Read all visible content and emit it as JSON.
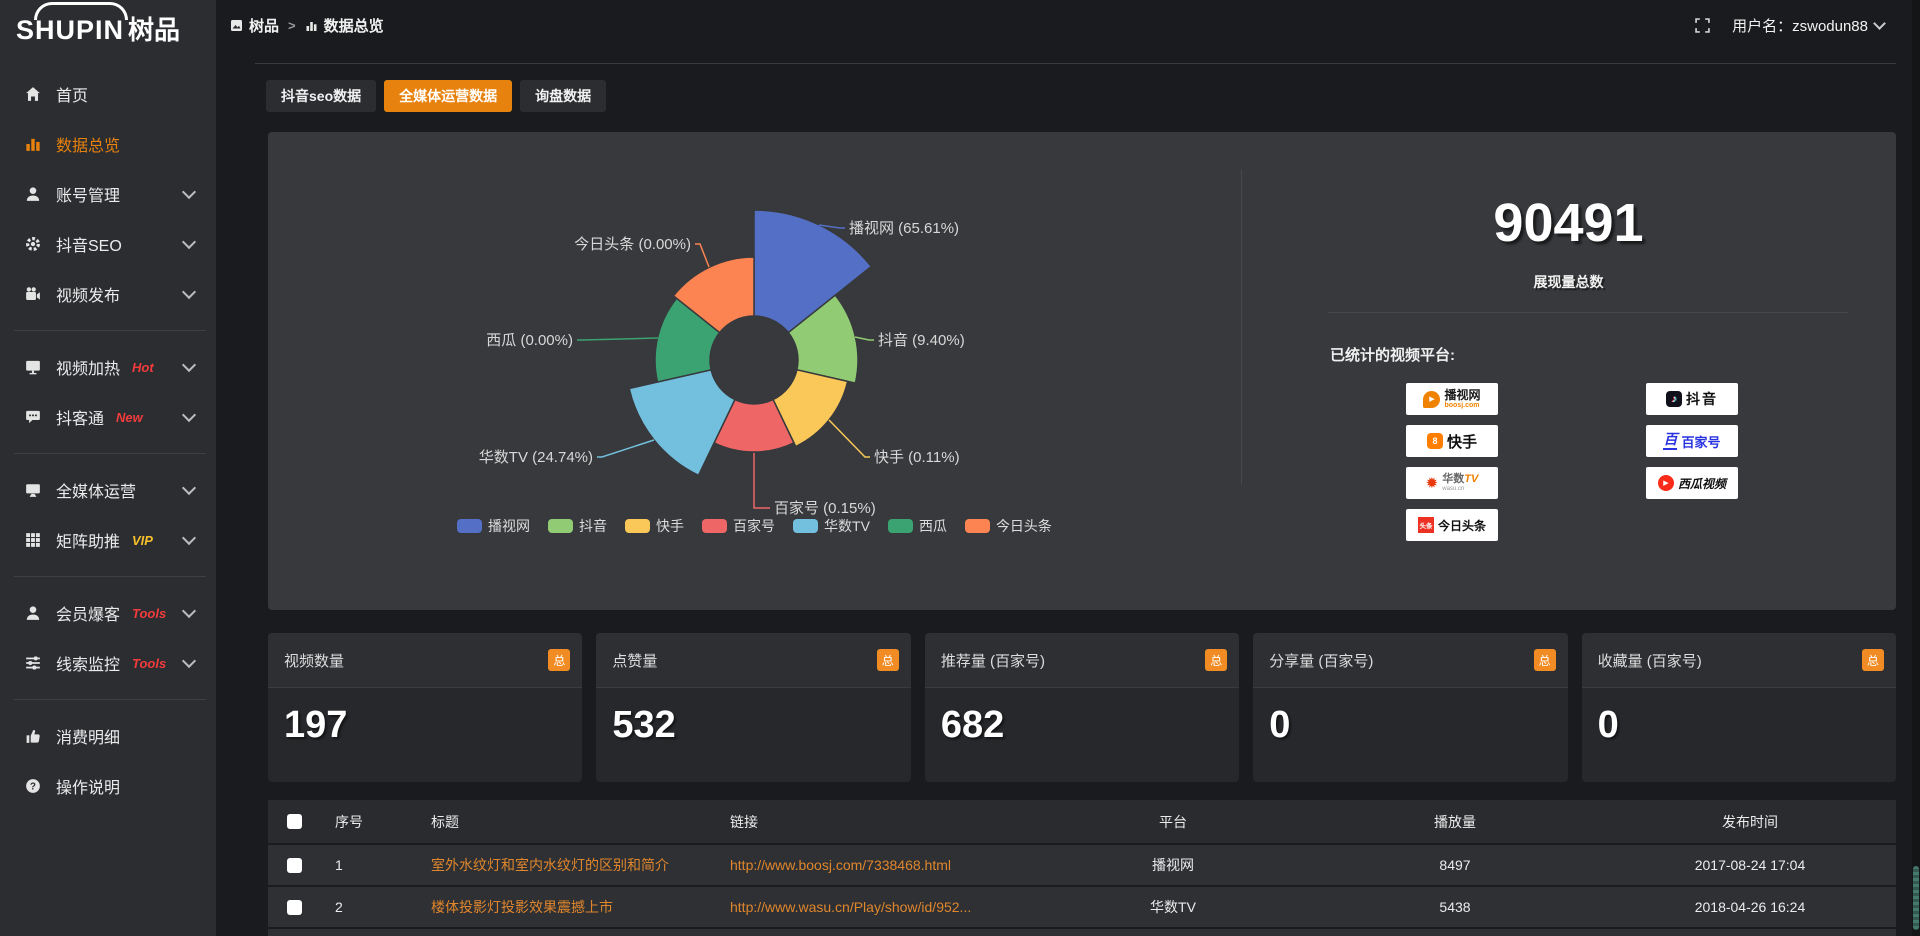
{
  "logo": {
    "en": "SHUPIN",
    "zh": "树品"
  },
  "topbar": {
    "breadcrumb": [
      {
        "label": "树品",
        "icon": "photo-icon"
      },
      {
        "label": "数据总览",
        "icon": "bars-icon"
      }
    ],
    "separator": ">",
    "username": "用户名：zswodun88"
  },
  "sidebar": {
    "items": [
      {
        "label": "首页",
        "icon": "home",
        "active": false,
        "chevron": false,
        "badge": null,
        "divider_after": false
      },
      {
        "label": "数据总览",
        "icon": "bar-chart",
        "active": true,
        "chevron": false,
        "badge": null,
        "divider_after": false
      },
      {
        "label": "账号管理",
        "icon": "user",
        "active": false,
        "chevron": true,
        "badge": null,
        "divider_after": false
      },
      {
        "label": "抖音SEO",
        "icon": "gear",
        "active": false,
        "chevron": true,
        "badge": null,
        "divider_after": false
      },
      {
        "label": "视频发布",
        "icon": "video-camera",
        "active": false,
        "chevron": true,
        "badge": null,
        "divider_after": true
      },
      {
        "label": "视频加热",
        "icon": "display",
        "active": false,
        "chevron": true,
        "badge": {
          "text": "Hot",
          "color": "#f23c3c"
        },
        "divider_after": false
      },
      {
        "label": "抖客通",
        "icon": "chat",
        "active": false,
        "chevron": true,
        "badge": {
          "text": "New",
          "color": "#f23c3c"
        },
        "divider_after": true
      },
      {
        "label": "全媒体运营",
        "icon": "monitor",
        "active": false,
        "chevron": true,
        "badge": null,
        "divider_after": false
      },
      {
        "label": "矩阵助推",
        "icon": "grid",
        "active": false,
        "chevron": true,
        "badge": {
          "text": "VIP",
          "color": "#f5c02a"
        },
        "divider_after": true
      },
      {
        "label": "会员爆客",
        "icon": "user-group",
        "active": false,
        "chevron": true,
        "badge": {
          "text": "Tools",
          "color": "#f23c3c"
        },
        "divider_after": false
      },
      {
        "label": "线索监控",
        "icon": "sliders",
        "active": false,
        "chevron": true,
        "badge": {
          "text": "Tools",
          "color": "#f23c3c"
        },
        "divider_after": true
      },
      {
        "label": "消费明细",
        "icon": "thumb-up",
        "active": false,
        "chevron": false,
        "badge": null,
        "divider_after": false
      },
      {
        "label": "操作说明",
        "icon": "help-circle",
        "active": false,
        "chevron": false,
        "badge": null,
        "divider_after": false
      }
    ]
  },
  "tabs": [
    {
      "label": "抖音seo数据",
      "active": false
    },
    {
      "label": "全媒体运营数据",
      "active": true
    },
    {
      "label": "询盘数据",
      "active": false
    }
  ],
  "chart_data": {
    "type": "pie",
    "subtype": "nightingale-rose",
    "labels": [
      "播视网",
      "抖音",
      "快手",
      "百家号",
      "华数TV",
      "西瓜",
      "今日头条"
    ],
    "values": [
      65.61,
      9.4,
      0.11,
      0.15,
      24.74,
      0.0,
      0.0
    ],
    "unit": "%",
    "colors": [
      "#5470c6",
      "#91cc75",
      "#fac858",
      "#ee6666",
      "#73c0de",
      "#3ba272",
      "#fc8452"
    ],
    "label_format": "{name} ({value}%)",
    "legend_position": "bottom",
    "legend": [
      "播视网",
      "抖音",
      "快手",
      "百家号",
      "华数TV",
      "西瓜",
      "今日头条"
    ]
  },
  "summary": {
    "total_value": "90491",
    "total_label": "展现量总数",
    "platforms_label": "已统计的视频平台:",
    "platform_badges": [
      {
        "key": "boosj",
        "name": "播视网",
        "sub": "boosj.com"
      },
      {
        "key": "kuaishou",
        "name": "快手",
        "sub": ""
      },
      {
        "key": "wasu",
        "name": "华数TV",
        "sub": "wasu.cn"
      },
      {
        "key": "toutiao",
        "name": "今日头条",
        "sub": ""
      },
      {
        "key": "douyin",
        "name": "抖音",
        "sub": ""
      },
      {
        "key": "baijiahao",
        "name": "百家号",
        "sub": ""
      },
      {
        "key": "xigua",
        "name": "西瓜视频",
        "sub": ""
      }
    ]
  },
  "stat_cards": [
    {
      "title": "视频数量",
      "badge": "总",
      "value": "197"
    },
    {
      "title": "点赞量",
      "badge": "总",
      "value": "532"
    },
    {
      "title": "推荐量 (百家号)",
      "badge": "总",
      "value": "682"
    },
    {
      "title": "分享量 (百家号)",
      "badge": "总",
      "value": "0"
    },
    {
      "title": "收藏量 (百家号)",
      "badge": "总",
      "value": "0"
    }
  ],
  "table": {
    "headers": [
      "序号",
      "标题",
      "链接",
      "平台",
      "播放量",
      "发布时间"
    ],
    "rows": [
      {
        "no": "1",
        "title": "室外水纹灯和室内水纹灯的区别和简介",
        "link": "http://www.boosj.com/7338468.html",
        "platform": "播视网",
        "plays": "8497",
        "time": "2017-08-24 17:04"
      },
      {
        "no": "2",
        "title": "楼体投影灯投影效果震撼上市",
        "link": "http://www.wasu.cn/Play/show/id/952...",
        "platform": "华数TV",
        "plays": "5438",
        "time": "2018-04-26 16:24"
      }
    ]
  },
  "colors": {
    "accent": "#e8820e",
    "link_orange": "#e0862c"
  }
}
